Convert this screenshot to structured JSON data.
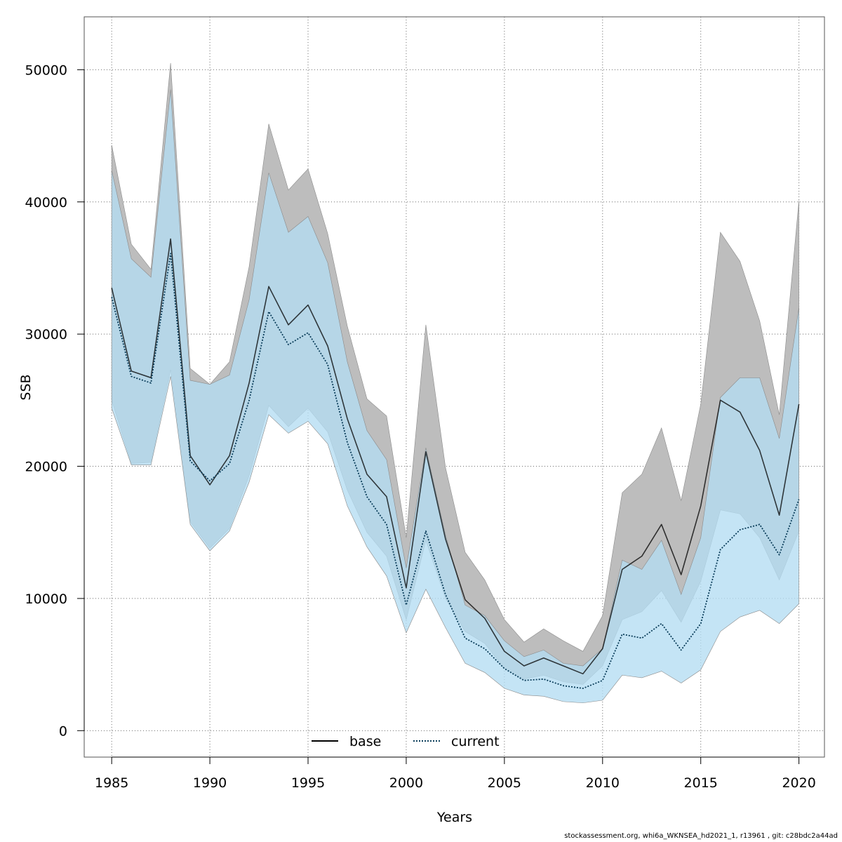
{
  "chart_data": {
    "type": "line",
    "xlabel": "Years",
    "ylabel": "SSB",
    "xlim": [
      1983.6,
      2021.3
    ],
    "ylim": [
      -2000,
      54000
    ],
    "x_ticks": [
      1985,
      1990,
      1995,
      2000,
      2005,
      2010,
      2015,
      2020
    ],
    "y_ticks": [
      0,
      10000,
      20000,
      30000,
      40000,
      50000
    ],
    "grid": true,
    "legend_placement": "bottom",
    "x": [
      1985,
      1986,
      1987,
      1988,
      1989,
      1990,
      1991,
      1992,
      1993,
      1994,
      1995,
      1996,
      1997,
      1998,
      1999,
      2000,
      2001,
      2002,
      2003,
      2004,
      2005,
      2006,
      2007,
      2008,
      2009,
      2010,
      2011,
      2012,
      2013,
      2014,
      2015,
      2016,
      2017,
      2018,
      2019,
      2020
    ],
    "series": [
      {
        "name": "base",
        "line_style": "solid",
        "line_color": "#000000",
        "band_color": "#bdbdbd",
        "values": [
          33500,
          27200,
          26700,
          37200,
          20800,
          18600,
          20800,
          26300,
          33600,
          30700,
          32200,
          29100,
          23600,
          19400,
          17700,
          10800,
          21100,
          14500,
          9900,
          8500,
          6000,
          4900,
          5500,
          4900,
          4300,
          6200,
          12200,
          13200,
          15600,
          11800,
          17000,
          25000,
          24100,
          21200,
          16300,
          24700
        ],
        "lower": [
          25000,
          20200,
          20300,
          27300,
          15800,
          13800,
          15300,
          19300,
          24600,
          23000,
          24400,
          22600,
          18200,
          15000,
          13200,
          8400,
          14400,
          10000,
          7500,
          6600,
          4700,
          3900,
          4200,
          3700,
          3500,
          4900,
          8400,
          9000,
          10600,
          8200,
          11300,
          16700,
          16400,
          14600,
          11400,
          15100
        ],
        "upper": [
          44300,
          36800,
          34900,
          50500,
          27400,
          26200,
          27900,
          35100,
          45900,
          40900,
          42500,
          37600,
          30600,
          25100,
          23800,
          14600,
          30700,
          19900,
          13500,
          11400,
          8400,
          6700,
          7700,
          6800,
          6000,
          8700,
          18000,
          19400,
          22900,
          17400,
          24700,
          37700,
          35500,
          31000,
          23900,
          40100
        ]
      },
      {
        "name": "current",
        "line_style": "dotted",
        "line_color": "#0a3d5a",
        "band_color": "#b3dcf2",
        "values": [
          32800,
          26800,
          26300,
          36100,
          20400,
          18900,
          20200,
          25000,
          31700,
          29200,
          30100,
          27700,
          21800,
          17700,
          15600,
          9500,
          15100,
          10300,
          7000,
          6200,
          4700,
          3800,
          3900,
          3400,
          3200,
          3800,
          7300,
          7000,
          8100,
          6100,
          8100,
          13700,
          15200,
          15600,
          13300,
          17500
        ],
        "lower": [
          24400,
          20100,
          20100,
          26800,
          15600,
          13600,
          15100,
          18800,
          23900,
          22500,
          23400,
          21700,
          17000,
          13900,
          11700,
          7400,
          10700,
          7800,
          5100,
          4400,
          3200,
          2700,
          2600,
          2200,
          2100,
          2300,
          4200,
          4000,
          4500,
          3600,
          4600,
          7500,
          8600,
          9100,
          8100,
          9600
        ],
        "upper": [
          42400,
          35700,
          34300,
          48500,
          26500,
          26200,
          26900,
          32600,
          42200,
          37700,
          38900,
          35400,
          27900,
          22700,
          20500,
          12300,
          21400,
          14800,
          9500,
          8700,
          6800,
          5600,
          6100,
          5100,
          4900,
          6200,
          12900,
          12200,
          14400,
          10300,
          14600,
          25200,
          26700,
          26700,
          22100,
          32000
        ]
      }
    ],
    "footer": "stockassessment.org, whi6a_WKNSEA_hd2021_1, r13961 , git: c28bdc2a44ad"
  }
}
